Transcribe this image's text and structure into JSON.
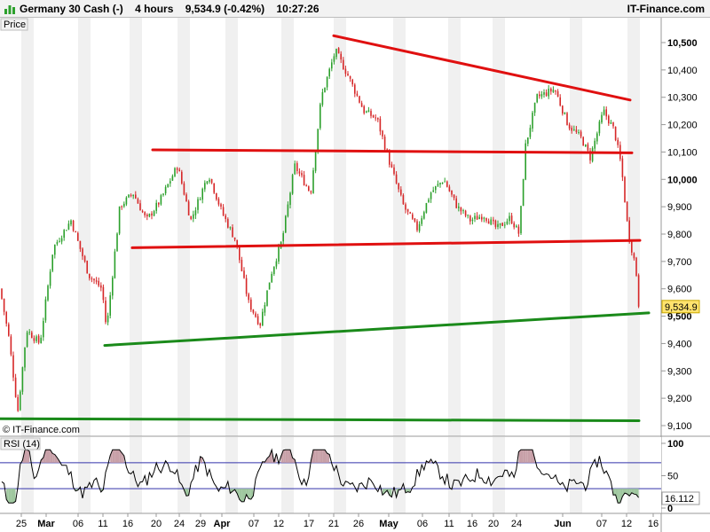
{
  "header": {
    "instrument": "Germany 30 Cash (-)",
    "timeframe": "4 hours",
    "last": "9,534.9 (-0.42%)",
    "time": "10:27:26",
    "brand": "IT-Finance.com"
  },
  "price_panel": {
    "label": "Price",
    "copyright": "© IT-Finance.com",
    "last_price_label": "9,534.9"
  },
  "rsi_panel": {
    "label": "RSI (14)",
    "value_label": "16.112"
  },
  "colors": {
    "up": "#2ca02c",
    "down": "#d62728",
    "resistance": "#e01010",
    "support": "#1a8a1a",
    "rsi_line": "#000000",
    "rsi_level": "#3333aa",
    "price_tag_bg": "#ffe36e"
  },
  "chart_data": [
    {
      "type": "line",
      "subtype": "candlestick-4h",
      "yaxis_ticks": [
        "10,500",
        "10,400",
        "10,300",
        "10,200",
        "10,100",
        "10,000",
        "9,900",
        "9,800",
        "9,700",
        "9,600",
        "9,500",
        "9,400",
        "9,300",
        "9,200",
        "9,100"
      ],
      "ylim": [
        9080,
        10560
      ],
      "xaxis_labels": [
        "25",
        "Mar",
        "06",
        "11",
        "16",
        "20",
        "24",
        "29",
        "Apr",
        "07",
        "12",
        "17",
        "21",
        "26",
        "May",
        "06",
        "11",
        "16",
        "20",
        "24",
        "Jun",
        "07",
        "12",
        "16"
      ],
      "xaxis_bold": [
        "Mar",
        "Apr",
        "May",
        "Jun"
      ],
      "grid": "vertical bands",
      "close_anchors": [
        {
          "x": 0,
          "y": 9600
        },
        {
          "x": 10,
          "y": 9420
        },
        {
          "x": 20,
          "y": 9150
        },
        {
          "x": 30,
          "y": 9450
        },
        {
          "x": 45,
          "y": 9400
        },
        {
          "x": 60,
          "y": 9750
        },
        {
          "x": 80,
          "y": 9850
        },
        {
          "x": 100,
          "y": 9650
        },
        {
          "x": 115,
          "y": 9600
        },
        {
          "x": 120,
          "y": 9450
        },
        {
          "x": 135,
          "y": 9900
        },
        {
          "x": 150,
          "y": 9950
        },
        {
          "x": 165,
          "y": 9850
        },
        {
          "x": 180,
          "y": 9920
        },
        {
          "x": 200,
          "y": 10050
        },
        {
          "x": 215,
          "y": 9850
        },
        {
          "x": 235,
          "y": 10020
        },
        {
          "x": 250,
          "y": 9880
        },
        {
          "x": 265,
          "y": 9780
        },
        {
          "x": 280,
          "y": 9550
        },
        {
          "x": 293,
          "y": 9470
        },
        {
          "x": 305,
          "y": 9650
        },
        {
          "x": 318,
          "y": 9780
        },
        {
          "x": 332,
          "y": 10050
        },
        {
          "x": 350,
          "y": 9950
        },
        {
          "x": 362,
          "y": 10300
        },
        {
          "x": 378,
          "y": 10470
        },
        {
          "x": 392,
          "y": 10380
        },
        {
          "x": 410,
          "y": 10250
        },
        {
          "x": 425,
          "y": 10220
        },
        {
          "x": 440,
          "y": 10050
        },
        {
          "x": 455,
          "y": 9900
        },
        {
          "x": 470,
          "y": 9820
        },
        {
          "x": 485,
          "y": 9950
        },
        {
          "x": 500,
          "y": 10000
        },
        {
          "x": 515,
          "y": 9900
        },
        {
          "x": 530,
          "y": 9850
        },
        {
          "x": 545,
          "y": 9870
        },
        {
          "x": 560,
          "y": 9820
        },
        {
          "x": 575,
          "y": 9860
        },
        {
          "x": 585,
          "y": 9800
        },
        {
          "x": 592,
          "y": 10120
        },
        {
          "x": 605,
          "y": 10300
        },
        {
          "x": 625,
          "y": 10330
        },
        {
          "x": 640,
          "y": 10200
        },
        {
          "x": 655,
          "y": 10150
        },
        {
          "x": 665,
          "y": 10080
        },
        {
          "x": 680,
          "y": 10250
        },
        {
          "x": 692,
          "y": 10180
        },
        {
          "x": 700,
          "y": 10050
        },
        {
          "x": 708,
          "y": 9800
        },
        {
          "x": 715,
          "y": 9700
        },
        {
          "x": 722,
          "y": 9535
        }
      ],
      "trendlines": [
        {
          "color": "resistance",
          "from": [
            376,
            10525
          ],
          "to": [
            710,
            10290
          ]
        },
        {
          "color": "resistance",
          "from": [
            172,
            10108
          ],
          "to": [
            712,
            10097
          ]
        },
        {
          "color": "resistance",
          "from": [
            149,
            9750
          ],
          "to": [
            721,
            9777
          ]
        },
        {
          "color": "support",
          "from": [
            118,
            9393
          ],
          "to": [
            731,
            9512
          ]
        },
        {
          "color": "support",
          "from": [
            0,
            9125
          ],
          "to": [
            720,
            9118
          ]
        }
      ],
      "last_price": 9534.9
    },
    {
      "type": "line",
      "title": "RSI (14)",
      "ylim": [
        0,
        100
      ],
      "yaxis_ticks": [
        "100",
        "50",
        "0"
      ],
      "levels": [
        70,
        30
      ],
      "last_value": 16.112
    }
  ]
}
